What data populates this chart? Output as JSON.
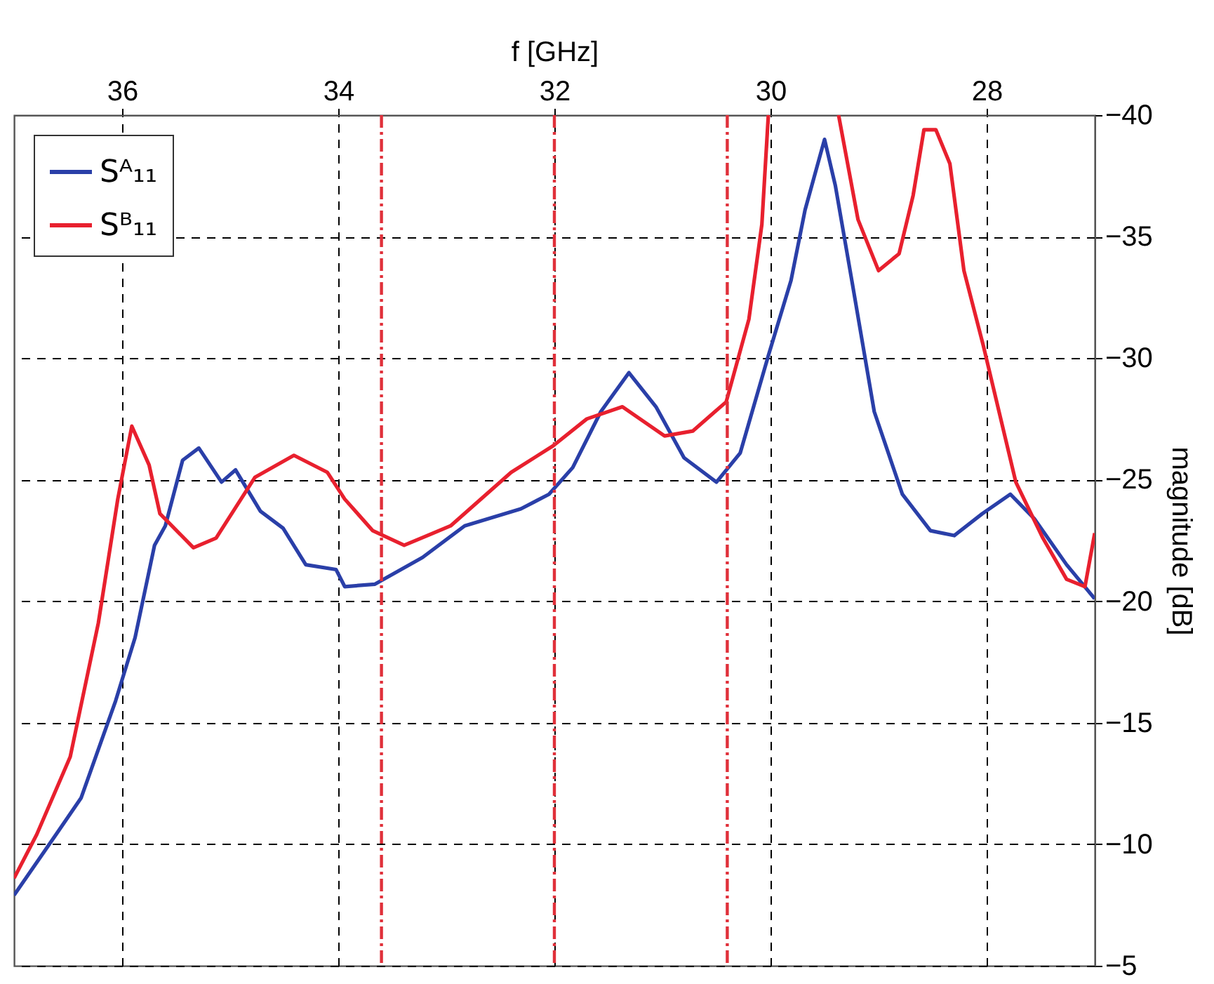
{
  "chart_data": {
    "type": "line",
    "xlabel": "f [GHz]",
    "ylabel": "magnitude [dB]",
    "xlim": [
      37,
      27
    ],
    "xticks": [
      28,
      30,
      32,
      34,
      36
    ],
    "ylim": [
      -5,
      -40
    ],
    "yticks": [
      -40,
      -35,
      -30,
      -25,
      -20,
      -15,
      -10,
      -5
    ],
    "grid": true,
    "legend": "top left",
    "line_style": "solid",
    "marker": "none",
    "series": [
      {
        "name": "Sᴬ₁₁",
        "color": "#2a3fa8",
        "x": [
          27.0,
          27.26,
          27.56,
          27.78,
          28.04,
          28.3,
          28.52,
          28.78,
          29.04,
          29.24,
          29.4,
          29.5,
          29.68,
          29.81,
          30.02,
          30.28,
          30.5,
          30.8,
          31.06,
          31.31,
          31.57,
          31.83,
          32.05,
          32.31,
          32.83,
          33.22,
          33.66,
          33.94,
          34.02,
          34.3,
          34.51,
          34.72,
          34.95,
          35.08,
          35.29,
          35.44,
          35.6,
          35.7,
          35.88,
          36.06,
          36.38,
          36.58,
          37.0
        ],
        "values": [
          -20.1,
          -21.5,
          -23.4,
          -24.4,
          -23.6,
          -22.7,
          -22.9,
          -24.4,
          -27.8,
          -33.0,
          -37.1,
          -39.0,
          -36.1,
          -33.2,
          -30.1,
          -26.1,
          -24.9,
          -25.9,
          -28.0,
          -29.4,
          -27.8,
          -25.5,
          -24.4,
          -23.8,
          -23.1,
          -21.8,
          -20.7,
          -20.6,
          -21.3,
          -21.5,
          -23.0,
          -23.7,
          -25.4,
          -24.9,
          -26.3,
          -25.8,
          -23.1,
          -22.3,
          -18.5,
          -15.9,
          -11.9,
          -10.6,
          -7.9
        ]
      },
      {
        "name": "Sᴮ₁₁",
        "color": "#e8202e",
        "x": [
          27.0,
          27.09,
          27.26,
          27.48,
          27.73,
          28.03,
          28.21,
          28.34,
          28.47,
          28.58,
          28.68,
          28.81,
          29.0,
          29.19,
          29.37,
          29.7,
          30.02,
          30.08,
          30.2,
          30.41,
          30.72,
          30.98,
          31.37,
          31.7,
          32.01,
          32.4,
          32.96,
          33.39,
          33.68,
          33.94,
          34.1,
          34.41,
          34.77,
          35.13,
          35.34,
          35.65,
          35.75,
          35.91,
          36.04,
          36.22,
          36.48,
          36.79,
          37.0
        ],
        "values": [
          -22.8,
          -20.6,
          -20.9,
          -22.6,
          -24.9,
          -30.5,
          -33.6,
          -38.0,
          -39.4,
          -39.4,
          -36.7,
          -34.3,
          -33.6,
          -35.7,
          -40,
          null,
          -40,
          -35.5,
          -31.6,
          -28.2,
          -27.0,
          -26.8,
          -28.0,
          -27.5,
          -26.4,
          -25.3,
          -23.1,
          -22.3,
          -22.9,
          -24.2,
          -25.3,
          -26.0,
          -25.1,
          -22.6,
          -22.2,
          -23.6,
          -25.6,
          -27.2,
          -24.2,
          -19.1,
          -13.6,
          -10.4,
          -8.6
        ]
      }
    ],
    "ref_lines": [
      {
        "axis": "x",
        "value": 30.4,
        "color": "#e0303a",
        "line_style": "dashdot"
      },
      {
        "axis": "x",
        "value": 32,
        "color": "#e0303a",
        "line_style": "dashdot"
      },
      {
        "axis": "x",
        "value": 33.6,
        "color": "#e0303a",
        "line_style": "dashdot"
      }
    ]
  }
}
